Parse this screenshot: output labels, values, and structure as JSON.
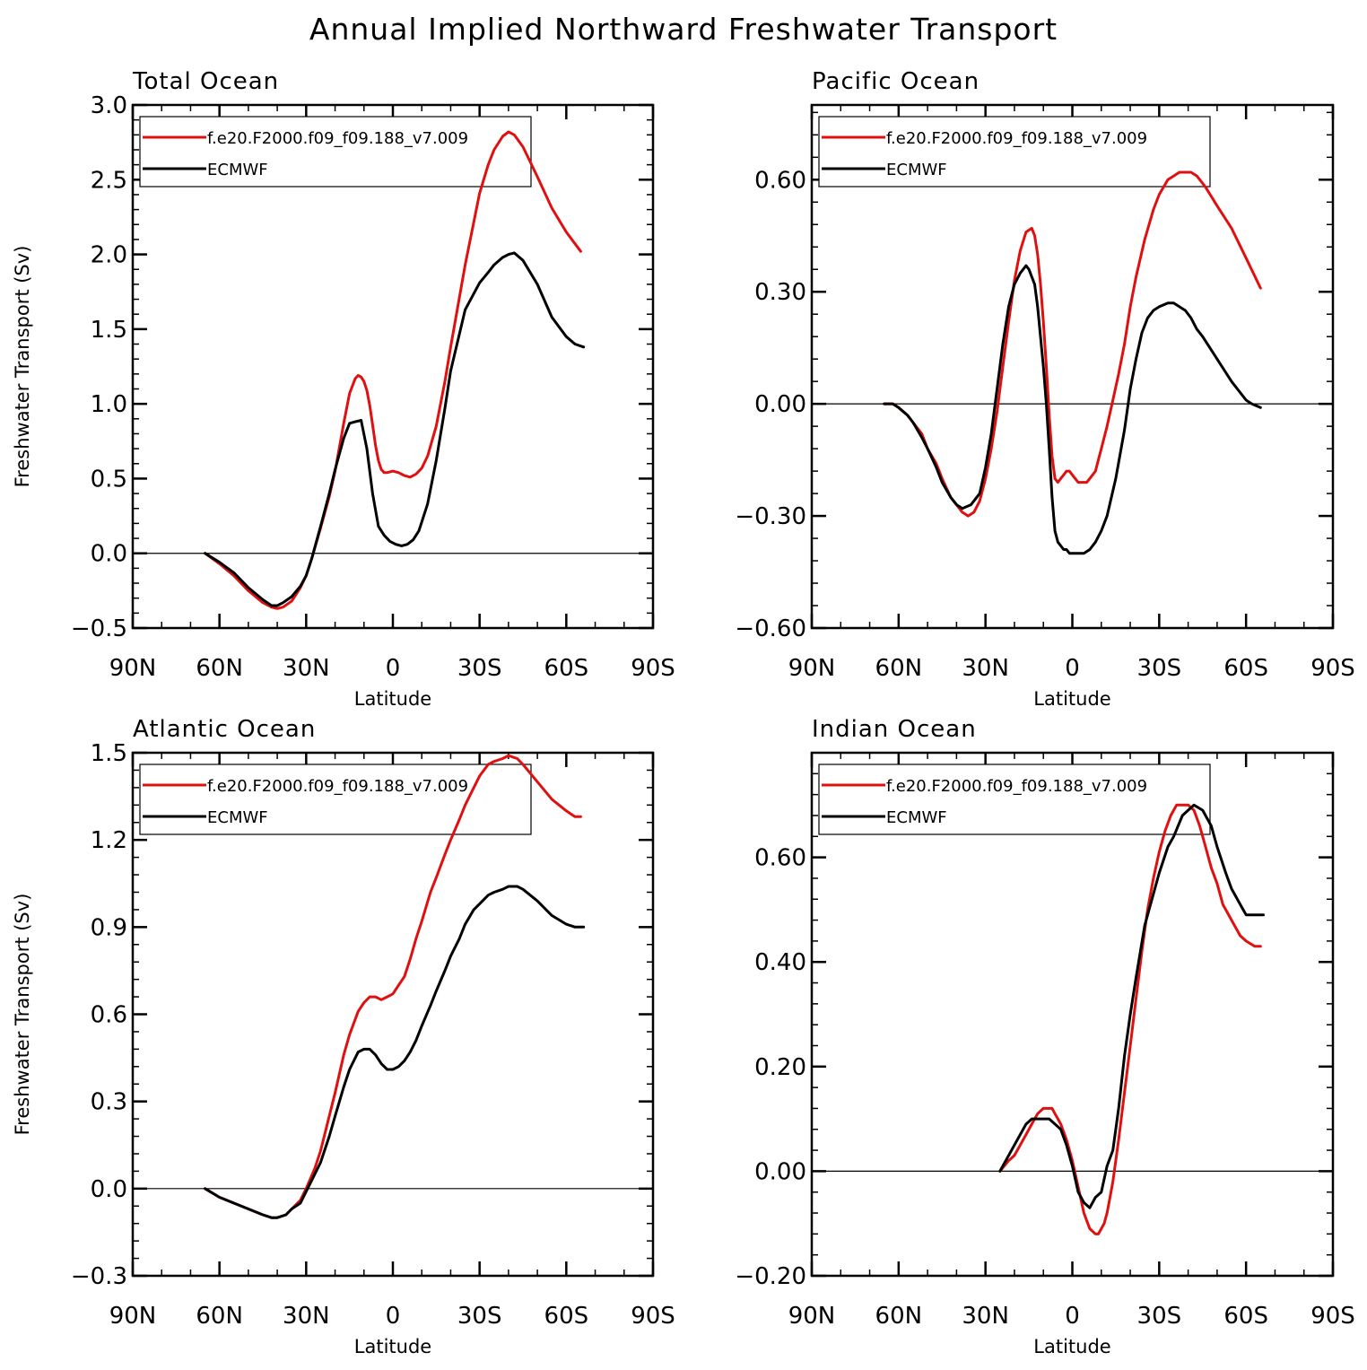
{
  "title": "Annual Implied Northward Freshwater Transport",
  "chart_data": [
    {
      "type": "line",
      "panel_title": "Total Ocean",
      "xlabel": "Latitude",
      "ylabel": "Freshwater Transport (Sv)",
      "xlim": [
        90,
        -90
      ],
      "x_ticks": [
        90,
        60,
        30,
        0,
        -30,
        -60,
        -90
      ],
      "x_tick_labels": [
        "90N",
        "60N",
        "30N",
        "0",
        "30S",
        "60S",
        "90S"
      ],
      "ylim": [
        -0.5,
        3.0
      ],
      "y_ticks": [
        -0.5,
        0.0,
        0.5,
        1.0,
        1.5,
        2.0,
        2.5,
        3.0
      ],
      "y_tick_labels": [
        "−0.5",
        "0.0",
        "0.5",
        "1.0",
        "1.5",
        "2.0",
        "2.5",
        "3.0"
      ],
      "y_minor_step": 0.1,
      "legend": [
        "f.e20.F2000.f09_f09.188_v7.009",
        "ECMWF"
      ],
      "series": [
        {
          "name": "f.e20.F2000.f09_f09.188_v7.009",
          "color": "#e01010",
          "x": [
            65,
            60,
            55,
            50,
            45,
            42,
            40,
            38,
            35,
            32,
            30,
            28,
            25,
            22,
            20,
            17,
            15,
            13,
            12,
            11,
            10,
            9,
            8,
            7,
            6,
            5,
            4,
            3,
            2,
            0,
            -2,
            -4,
            -6,
            -8,
            -10,
            -12,
            -15,
            -18,
            -20,
            -25,
            -30,
            -33,
            -35,
            -38,
            -40,
            -42,
            -45,
            -50,
            -55,
            -60,
            -65
          ],
          "y": [
            0.0,
            -0.07,
            -0.15,
            -0.25,
            -0.33,
            -0.36,
            -0.37,
            -0.36,
            -0.32,
            -0.23,
            -0.15,
            -0.03,
            0.17,
            0.38,
            0.55,
            0.87,
            1.07,
            1.17,
            1.19,
            1.18,
            1.15,
            1.09,
            0.99,
            0.86,
            0.72,
            0.62,
            0.56,
            0.54,
            0.54,
            0.55,
            0.54,
            0.52,
            0.51,
            0.53,
            0.57,
            0.65,
            0.85,
            1.15,
            1.38,
            1.93,
            2.41,
            2.6,
            2.7,
            2.79,
            2.82,
            2.8,
            2.72,
            2.52,
            2.31,
            2.15,
            2.02
          ]
        },
        {
          "name": "ECMWF",
          "color": "#000000",
          "x": [
            65,
            60,
            55,
            50,
            45,
            42,
            40,
            38,
            35,
            32,
            30,
            28,
            25,
            22,
            20,
            17,
            15,
            13,
            11,
            9,
            7,
            5,
            3,
            1,
            -1,
            -3,
            -5,
            -7,
            -9,
            -12,
            -15,
            -18,
            -20,
            -25,
            -30,
            -33,
            -35,
            -38,
            -40,
            -42,
            -45,
            -50,
            -55,
            -60,
            -63,
            -66
          ],
          "y": [
            0.0,
            -0.06,
            -0.13,
            -0.23,
            -0.31,
            -0.35,
            -0.35,
            -0.33,
            -0.29,
            -0.22,
            -0.15,
            -0.03,
            0.18,
            0.4,
            0.56,
            0.77,
            0.87,
            0.88,
            0.89,
            0.7,
            0.4,
            0.18,
            0.12,
            0.08,
            0.06,
            0.05,
            0.06,
            0.09,
            0.15,
            0.33,
            0.62,
            0.97,
            1.22,
            1.63,
            1.81,
            1.88,
            1.93,
            1.98,
            2.0,
            2.01,
            1.96,
            1.8,
            1.58,
            1.45,
            1.4,
            1.38
          ]
        }
      ]
    },
    {
      "type": "line",
      "panel_title": "Pacific Ocean",
      "xlabel": "Latitude",
      "ylabel": "",
      "xlim": [
        90,
        -90
      ],
      "x_ticks": [
        90,
        60,
        30,
        0,
        -30,
        -60,
        -90
      ],
      "x_tick_labels": [
        "90N",
        "60N",
        "30N",
        "0",
        "30S",
        "60S",
        "90S"
      ],
      "ylim": [
        -0.6,
        0.8
      ],
      "y_ticks": [
        -0.6,
        -0.3,
        0.0,
        0.3,
        0.6
      ],
      "y_tick_labels": [
        "−0.60",
        "−0.30",
        "0.00",
        "0.30",
        "0.60"
      ],
      "y_minor_step": 0.06,
      "legend": [
        "f.e20.F2000.f09_f09.188_v7.009",
        "ECMWF"
      ],
      "series": [
        {
          "name": "f.e20.F2000.f09_f09.188_v7.009",
          "color": "#e01010",
          "x": [
            65,
            62,
            60,
            57,
            55,
            52,
            50,
            47,
            45,
            42,
            40,
            38,
            36,
            34,
            32,
            30,
            28,
            26,
            24,
            22,
            20,
            18,
            16,
            14,
            13,
            12,
            11,
            10,
            9,
            8,
            7,
            6,
            5,
            4,
            3,
            2,
            1,
            0,
            -1,
            -2,
            -3,
            -4,
            -5,
            -6,
            -7,
            -8,
            -9,
            -10,
            -12,
            -14,
            -16,
            -18,
            -20,
            -22,
            -25,
            -28,
            -30,
            -33,
            -35,
            -37,
            -39,
            -41,
            -43,
            -46,
            -50,
            -55,
            -60,
            -65
          ],
          "y": [
            0.0,
            0.0,
            -0.01,
            -0.03,
            -0.05,
            -0.08,
            -0.12,
            -0.16,
            -0.2,
            -0.25,
            -0.27,
            -0.29,
            -0.3,
            -0.29,
            -0.26,
            -0.2,
            -0.12,
            -0.02,
            0.1,
            0.22,
            0.33,
            0.41,
            0.46,
            0.47,
            0.45,
            0.4,
            0.32,
            0.22,
            0.1,
            -0.03,
            -0.14,
            -0.2,
            -0.21,
            -0.2,
            -0.19,
            -0.18,
            -0.18,
            -0.19,
            -0.2,
            -0.21,
            -0.21,
            -0.21,
            -0.21,
            -0.2,
            -0.19,
            -0.18,
            -0.15,
            -0.12,
            -0.06,
            0.01,
            0.08,
            0.16,
            0.26,
            0.34,
            0.44,
            0.52,
            0.56,
            0.6,
            0.61,
            0.62,
            0.62,
            0.62,
            0.61,
            0.58,
            0.53,
            0.47,
            0.39,
            0.31
          ]
        },
        {
          "name": "ECMWF",
          "color": "#000000",
          "x": [
            65,
            62,
            60,
            57,
            55,
            52,
            50,
            47,
            45,
            42,
            40,
            38,
            35,
            32,
            30,
            28,
            26,
            24,
            22,
            20,
            18,
            16,
            15,
            14,
            13,
            12,
            11,
            10,
            9,
            8,
            7,
            6,
            5,
            4,
            3,
            2,
            1,
            0,
            -2,
            -4,
            -6,
            -8,
            -10,
            -12,
            -15,
            -18,
            -20,
            -22,
            -24,
            -26,
            -28,
            -30,
            -33,
            -35,
            -37,
            -39,
            -41,
            -43,
            -45,
            -50,
            -55,
            -60,
            -62,
            -65
          ],
          "y": [
            0.0,
            0.0,
            -0.01,
            -0.03,
            -0.05,
            -0.09,
            -0.12,
            -0.17,
            -0.21,
            -0.25,
            -0.27,
            -0.28,
            -0.27,
            -0.24,
            -0.17,
            -0.08,
            0.04,
            0.16,
            0.26,
            0.32,
            0.35,
            0.37,
            0.36,
            0.34,
            0.32,
            0.26,
            0.18,
            0.1,
            0.0,
            -0.12,
            -0.25,
            -0.34,
            -0.37,
            -0.38,
            -0.39,
            -0.39,
            -0.4,
            -0.4,
            -0.4,
            -0.4,
            -0.39,
            -0.37,
            -0.34,
            -0.3,
            -0.2,
            -0.07,
            0.04,
            0.12,
            0.19,
            0.23,
            0.25,
            0.26,
            0.27,
            0.27,
            0.26,
            0.25,
            0.23,
            0.2,
            0.18,
            0.12,
            0.06,
            0.01,
            0.0,
            -0.01
          ]
        }
      ]
    },
    {
      "type": "line",
      "panel_title": "Atlantic Ocean",
      "xlabel": "Latitude",
      "ylabel": "Freshwater Transport (Sv)",
      "xlim": [
        90,
        -90
      ],
      "x_ticks": [
        90,
        60,
        30,
        0,
        -30,
        -60,
        -90
      ],
      "x_tick_labels": [
        "90N",
        "60N",
        "30N",
        "0",
        "30S",
        "60S",
        "90S"
      ],
      "ylim": [
        -0.3,
        1.5
      ],
      "y_ticks": [
        -0.3,
        0.0,
        0.3,
        0.6,
        0.9,
        1.2,
        1.5
      ],
      "y_tick_labels": [
        "−0.3",
        "0.0",
        "0.3",
        "0.6",
        "0.9",
        "1.2",
        "1.5"
      ],
      "y_minor_step": 0.06,
      "legend": [
        "f.e20.F2000.f09_f09.188_v7.009",
        "ECMWF"
      ],
      "series": [
        {
          "name": "f.e20.F2000.f09_f09.188_v7.009",
          "color": "#e01010",
          "x": [
            65,
            60,
            55,
            50,
            45,
            42,
            40,
            37,
            35,
            32,
            30,
            27,
            25,
            22,
            20,
            17,
            15,
            12,
            10,
            8,
            6,
            4,
            2,
            0,
            -2,
            -4,
            -6,
            -8,
            -10,
            -13,
            -15,
            -18,
            -20,
            -23,
            -25,
            -28,
            -30,
            -33,
            -35,
            -38,
            -40,
            -43,
            -45,
            -50,
            -55,
            -60,
            -63,
            -65
          ],
          "y": [
            0.0,
            -0.03,
            -0.05,
            -0.07,
            -0.09,
            -0.1,
            -0.1,
            -0.09,
            -0.07,
            -0.04,
            0.0,
            0.07,
            0.13,
            0.25,
            0.33,
            0.46,
            0.53,
            0.61,
            0.64,
            0.66,
            0.66,
            0.65,
            0.66,
            0.67,
            0.7,
            0.73,
            0.79,
            0.86,
            0.92,
            1.02,
            1.07,
            1.15,
            1.2,
            1.27,
            1.32,
            1.38,
            1.42,
            1.46,
            1.47,
            1.48,
            1.49,
            1.48,
            1.46,
            1.4,
            1.34,
            1.3,
            1.28,
            1.28
          ]
        },
        {
          "name": "ECMWF",
          "color": "#000000",
          "x": [
            65,
            60,
            55,
            50,
            45,
            42,
            40,
            37,
            35,
            32,
            30,
            28,
            25,
            22,
            20,
            17,
            15,
            12,
            10,
            8,
            6,
            4,
            2,
            0,
            -2,
            -4,
            -6,
            -8,
            -10,
            -13,
            -15,
            -18,
            -20,
            -23,
            -25,
            -28,
            -30,
            -33,
            -35,
            -38,
            -40,
            -43,
            -45,
            -50,
            -55,
            -60,
            -63,
            -66
          ],
          "y": [
            0.0,
            -0.03,
            -0.05,
            -0.07,
            -0.09,
            -0.1,
            -0.1,
            -0.09,
            -0.07,
            -0.05,
            -0.01,
            0.03,
            0.09,
            0.18,
            0.25,
            0.35,
            0.41,
            0.47,
            0.48,
            0.48,
            0.46,
            0.43,
            0.41,
            0.41,
            0.42,
            0.44,
            0.47,
            0.51,
            0.56,
            0.63,
            0.68,
            0.75,
            0.8,
            0.86,
            0.91,
            0.96,
            0.98,
            1.01,
            1.02,
            1.03,
            1.04,
            1.04,
            1.03,
            0.99,
            0.94,
            0.91,
            0.9,
            0.9
          ]
        }
      ]
    },
    {
      "type": "line",
      "panel_title": "Indian Ocean",
      "xlabel": "Latitude",
      "ylabel": "",
      "xlim": [
        90,
        -90
      ],
      "x_ticks": [
        90,
        60,
        30,
        0,
        -30,
        -60,
        -90
      ],
      "x_tick_labels": [
        "90N",
        "60N",
        "30N",
        "0",
        "30S",
        "60S",
        "90S"
      ],
      "ylim": [
        -0.2,
        0.8
      ],
      "y_ticks": [
        -0.2,
        0.0,
        0.2,
        0.4,
        0.6
      ],
      "y_tick_labels": [
        "−0.20",
        "0.00",
        "0.20",
        "0.40",
        "0.60"
      ],
      "y_minor_step": 0.04,
      "legend": [
        "f.e20.F2000.f09_f09.188_v7.009",
        "ECMWF"
      ],
      "series": [
        {
          "name": "f.e20.F2000.f09_f09.188_v7.009",
          "color": "#e01010",
          "x": [
            25,
            22,
            20,
            18,
            16,
            14,
            12,
            10,
            9,
            8,
            7,
            6,
            5,
            4,
            2,
            0,
            -2,
            -4,
            -6,
            -8,
            -9,
            -10,
            -11,
            -12,
            -13,
            -14,
            -16,
            -18,
            -20,
            -22,
            -24,
            -26,
            -28,
            -30,
            -32,
            -34,
            -36,
            -38,
            -40,
            -42,
            -44,
            -46,
            -48,
            -50,
            -52,
            -55,
            -58,
            -60,
            -63,
            -65
          ],
          "y": [
            0.0,
            0.02,
            0.03,
            0.05,
            0.07,
            0.09,
            0.11,
            0.12,
            0.12,
            0.12,
            0.12,
            0.11,
            0.1,
            0.09,
            0.06,
            0.02,
            -0.03,
            -0.08,
            -0.11,
            -0.12,
            -0.12,
            -0.11,
            -0.1,
            -0.08,
            -0.05,
            -0.02,
            0.06,
            0.15,
            0.24,
            0.33,
            0.42,
            0.5,
            0.56,
            0.61,
            0.65,
            0.68,
            0.7,
            0.7,
            0.7,
            0.69,
            0.66,
            0.62,
            0.58,
            0.55,
            0.51,
            0.48,
            0.45,
            0.44,
            0.43,
            0.43
          ]
        },
        {
          "name": "ECMWF",
          "color": "#000000",
          "x": [
            25,
            22,
            20,
            18,
            16,
            14,
            12,
            10,
            8,
            6,
            4,
            2,
            0,
            -2,
            -4,
            -6,
            -8,
            -10,
            -12,
            -14,
            -16,
            -18,
            -20,
            -22,
            -25,
            -28,
            -30,
            -33,
            -35,
            -38,
            -40,
            -42,
            -45,
            -48,
            -50,
            -53,
            -55,
            -58,
            -60,
            -63,
            -66
          ],
          "y": [
            0.0,
            0.03,
            0.05,
            0.07,
            0.09,
            0.1,
            0.1,
            0.1,
            0.1,
            0.09,
            0.08,
            0.05,
            0.01,
            -0.04,
            -0.06,
            -0.07,
            -0.05,
            -0.04,
            0.01,
            0.04,
            0.12,
            0.22,
            0.3,
            0.37,
            0.47,
            0.53,
            0.57,
            0.62,
            0.64,
            0.68,
            0.69,
            0.7,
            0.69,
            0.66,
            0.62,
            0.57,
            0.54,
            0.51,
            0.49,
            0.49,
            0.49
          ]
        }
      ]
    }
  ]
}
